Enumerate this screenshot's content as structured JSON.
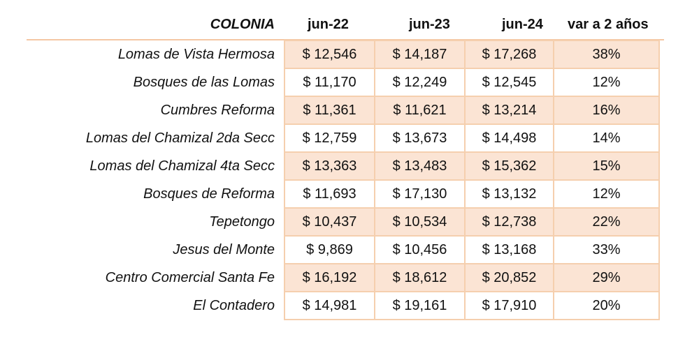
{
  "headers": [
    "COLONIA",
    "jun-22",
    "jun-23",
    "jun-24",
    "var a 2 años"
  ],
  "colors": {
    "row_fill": "#fbe4d4",
    "border": "#f5cfae"
  },
  "rows": [
    {
      "colonia": "Lomas de Vista Hermosa",
      "jun22": "$ 12,546",
      "jun23": "$ 14,187",
      "jun24": "$ 17,268",
      "var": "38%"
    },
    {
      "colonia": "Bosques de las Lomas",
      "jun22": "$ 11,170",
      "jun23": "$ 12,249",
      "jun24": "$ 12,545",
      "var": "12%"
    },
    {
      "colonia": "Cumbres Reforma",
      "jun22": "$ 11,361",
      "jun23": "$ 11,621",
      "jun24": "$ 13,214",
      "var": "16%"
    },
    {
      "colonia": "Lomas del Chamizal 2da Secc",
      "jun22": "$ 12,759",
      "jun23": "$ 13,673",
      "jun24": "$ 14,498",
      "var": "14%"
    },
    {
      "colonia": "Lomas del Chamizal 4ta Secc",
      "jun22": "$ 13,363",
      "jun23": "$ 13,483",
      "jun24": "$ 15,362",
      "var": "15%"
    },
    {
      "colonia": "Bosques de Reforma",
      "jun22": "$ 11,693",
      "jun23": "$ 17,130",
      "jun24": "$ 13,132",
      "var": "12%"
    },
    {
      "colonia": "Tepetongo",
      "jun22": "$ 10,437",
      "jun23": "$ 10,534",
      "jun24": "$ 12,738",
      "var": "22%"
    },
    {
      "colonia": "Jesus del Monte",
      "jun22": "$ 9,869",
      "jun23": "$ 10,456",
      "jun24": "$ 13,168",
      "var": "33%"
    },
    {
      "colonia": "Centro Comercial Santa Fe",
      "jun22": "$ 16,192",
      "jun23": "$ 18,612",
      "jun24": "$ 20,852",
      "var": "29%"
    },
    {
      "colonia": "El Contadero",
      "jun22": "$ 14,981",
      "jun23": "$ 19,161",
      "jun24": "$ 17,910",
      "var": "20%"
    }
  ]
}
